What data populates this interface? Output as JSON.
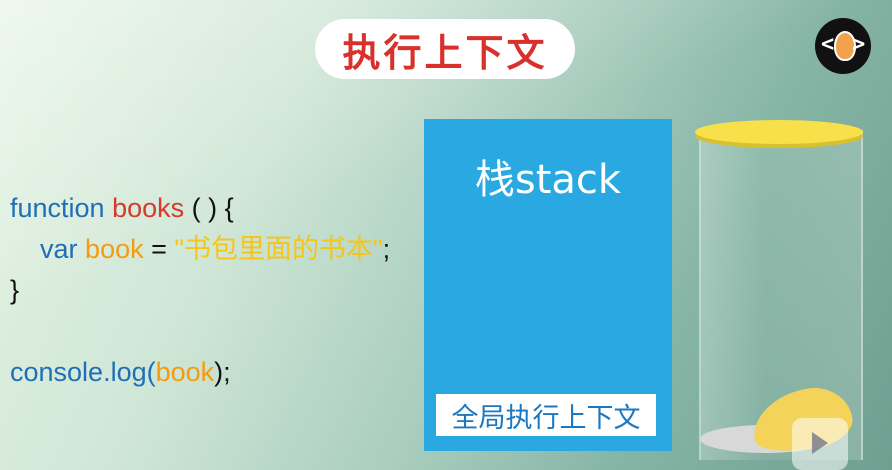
{
  "title": "执行上下文",
  "code": {
    "line1": {
      "kw": "function",
      "name": "books",
      "rest": " ( ) {"
    },
    "line2": {
      "kw": "var",
      "name": "book",
      "eq": " = ",
      "str": "\"书包里面的书本\"",
      "end": ";"
    },
    "line3": {
      "text": "}"
    },
    "line5": {
      "obj": "console.log(",
      "arg": "book",
      "end": ");"
    }
  },
  "stack": {
    "label": "栈stack",
    "global_context": "全局执行上下文",
    "color": "#29a8e1"
  },
  "icons": {
    "logo": "egg-code-logo-icon",
    "jar": "jar-icon",
    "watermark": "play-watermark-icon"
  },
  "colors": {
    "keyword": "#1e6fb8",
    "function_name": "#d63a2b",
    "variable": "#f39c12",
    "string": "#f5c518",
    "title": "#d9302c"
  }
}
